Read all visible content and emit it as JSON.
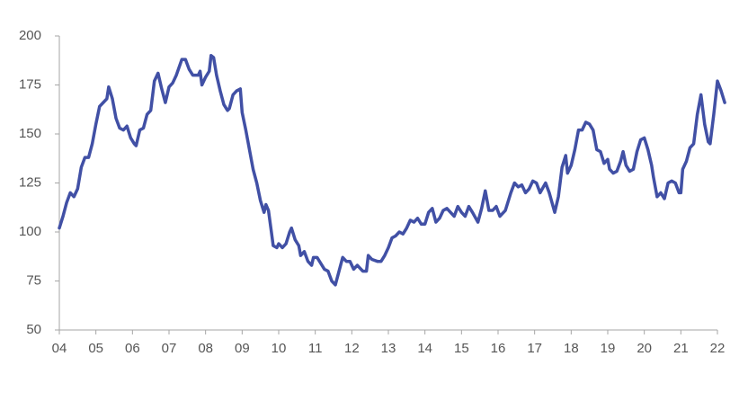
{
  "chart_data": {
    "type": "line",
    "color": "#4150a5",
    "xlim": [
      4,
      22
    ],
    "ylim": [
      50,
      200
    ],
    "yticks": [
      50,
      75,
      100,
      125,
      150,
      175,
      200
    ],
    "xticks": [
      {
        "value": 4,
        "label": "04"
      },
      {
        "value": 5,
        "label": "05"
      },
      {
        "value": 6,
        "label": "06"
      },
      {
        "value": 7,
        "label": "07"
      },
      {
        "value": 8,
        "label": "08"
      },
      {
        "value": 9,
        "label": "09"
      },
      {
        "value": 10,
        "label": "10"
      },
      {
        "value": 11,
        "label": "11"
      },
      {
        "value": 12,
        "label": "12"
      },
      {
        "value": 13,
        "label": "13"
      },
      {
        "value": 14,
        "label": "14"
      },
      {
        "value": 15,
        "label": "15"
      },
      {
        "value": 16,
        "label": "16"
      },
      {
        "value": 17,
        "label": "17"
      },
      {
        "value": 18,
        "label": "18"
      },
      {
        "value": 19,
        "label": "19"
      },
      {
        "value": 20,
        "label": "20"
      },
      {
        "value": 21,
        "label": "21"
      },
      {
        "value": 22,
        "label": "22"
      }
    ],
    "x": [
      4.0,
      4.1,
      4.2,
      4.3,
      4.4,
      4.5,
      4.6,
      4.7,
      4.8,
      4.9,
      5.0,
      5.1,
      5.2,
      5.3,
      5.35,
      5.45,
      5.55,
      5.65,
      5.75,
      5.85,
      5.95,
      6.05,
      6.1,
      6.2,
      6.3,
      6.4,
      6.5,
      6.6,
      6.7,
      6.8,
      6.9,
      7.0,
      7.1,
      7.2,
      7.35,
      7.45,
      7.55,
      7.65,
      7.8,
      7.85,
      7.9,
      8.0,
      8.1,
      8.15,
      8.22,
      8.3,
      8.4,
      8.5,
      8.6,
      8.65,
      8.75,
      8.85,
      8.95,
      9.0,
      9.1,
      9.2,
      9.3,
      9.4,
      9.5,
      9.6,
      9.65,
      9.72,
      9.8,
      9.85,
      9.95,
      10.0,
      10.1,
      10.2,
      10.3,
      10.35,
      10.45,
      10.55,
      10.6,
      10.7,
      10.8,
      10.9,
      10.95,
      11.05,
      11.15,
      11.25,
      11.35,
      11.45,
      11.55,
      11.65,
      11.75,
      11.85,
      11.95,
      12.05,
      12.15,
      12.3,
      12.4,
      12.45,
      12.55,
      12.7,
      12.8,
      12.9,
      13.0,
      13.1,
      13.2,
      13.3,
      13.4,
      13.5,
      13.6,
      13.7,
      13.8,
      13.9,
      14.0,
      14.1,
      14.2,
      14.3,
      14.4,
      14.5,
      14.6,
      14.7,
      14.8,
      14.9,
      15.0,
      15.1,
      15.2,
      15.3,
      15.45,
      15.55,
      15.65,
      15.75,
      15.85,
      15.95,
      16.05,
      16.2,
      16.35,
      16.45,
      16.55,
      16.65,
      16.75,
      16.85,
      16.95,
      17.05,
      17.15,
      17.3,
      17.4,
      17.55,
      17.65,
      17.75,
      17.85,
      17.9,
      18.0,
      18.1,
      18.2,
      18.3,
      18.4,
      18.5,
      18.6,
      18.7,
      18.8,
      18.9,
      19.0,
      19.05,
      19.15,
      19.25,
      19.35,
      19.42,
      19.5,
      19.6,
      19.7,
      19.8,
      19.9,
      20.0,
      20.1,
      20.2,
      20.25,
      20.35,
      20.45,
      20.55,
      20.65,
      20.75,
      20.85,
      20.95,
      21.0,
      21.05,
      21.15,
      21.25,
      21.35,
      21.45,
      21.55,
      21.65,
      21.75,
      21.8,
      21.9,
      22.0,
      22.1,
      22.2
    ],
    "values": [
      102,
      108,
      115,
      120,
      118,
      122,
      133,
      138,
      138,
      145,
      155,
      164,
      166,
      168,
      174,
      168,
      158,
      153,
      152,
      154,
      148,
      145,
      144,
      152,
      153,
      160,
      162,
      177,
      181,
      173,
      166,
      174,
      176,
      180,
      188,
      188,
      183,
      180,
      180,
      182,
      175,
      179,
      182,
      190,
      189,
      180,
      172,
      165,
      162,
      163,
      170,
      172,
      173,
      161,
      152,
      142,
      132,
      125,
      116,
      110,
      114,
      111,
      100,
      93,
      92,
      94,
      92,
      94,
      100,
      102,
      96,
      93,
      88,
      90,
      85,
      83,
      87,
      87,
      84,
      81,
      80,
      75,
      73,
      80,
      87,
      85,
      85,
      81,
      83,
      80,
      80,
      88,
      86,
      85,
      85,
      88,
      92,
      97,
      98,
      100,
      99,
      102,
      106,
      105,
      107,
      104,
      104,
      110,
      112,
      105,
      107,
      111,
      112,
      110,
      108,
      113,
      110,
      108,
      113,
      110,
      105,
      112,
      121,
      111,
      111,
      113,
      108,
      111,
      120,
      125,
      123,
      124,
      120,
      122,
      126,
      125,
      120,
      125,
      120,
      110,
      118,
      133,
      139,
      130,
      134,
      142,
      152,
      152,
      156,
      155,
      152,
      142,
      141,
      135,
      137,
      132,
      130,
      131,
      136,
      141,
      134,
      131,
      132,
      141,
      147,
      148,
      142,
      134,
      128,
      118,
      120,
      117,
      125,
      126,
      125,
      120,
      120,
      132,
      136,
      143,
      145,
      160,
      170,
      155,
      146,
      145,
      160,
      177,
      172,
      166
    ]
  }
}
